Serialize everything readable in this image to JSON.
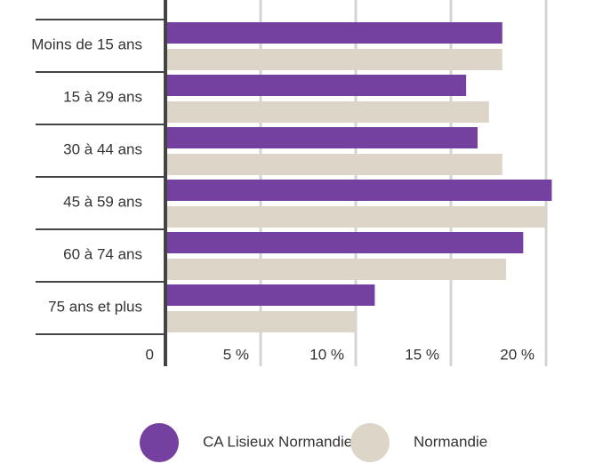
{
  "chart_data": {
    "type": "barh",
    "categories": [
      "Moins de 15 ans",
      "15 à 29 ans",
      "30 à 44 ans",
      "45 à 59 ans",
      "60 à 74 ans",
      "75 ans et plus"
    ],
    "series": [
      {
        "name": "CA Lisieux Normandie",
        "color": "#7441a0",
        "values": [
          17.7,
          15.8,
          16.4,
          20.3,
          18.8,
          11.0
        ]
      },
      {
        "name": "Normandie",
        "color": "#dcd5c8",
        "values": [
          17.7,
          17.0,
          17.7,
          20.0,
          17.9,
          10.0
        ]
      }
    ],
    "xlim": [
      0,
      20.5
    ],
    "xticks": [
      0,
      {
        "value": 5,
        "label": "5 %"
      },
      {
        "value": 10,
        "label": "10 %"
      },
      {
        "value": 15,
        "label": "15 %"
      },
      {
        "value": 20,
        "label": "20 %"
      }
    ],
    "grid": true,
    "legend": "bottom"
  }
}
